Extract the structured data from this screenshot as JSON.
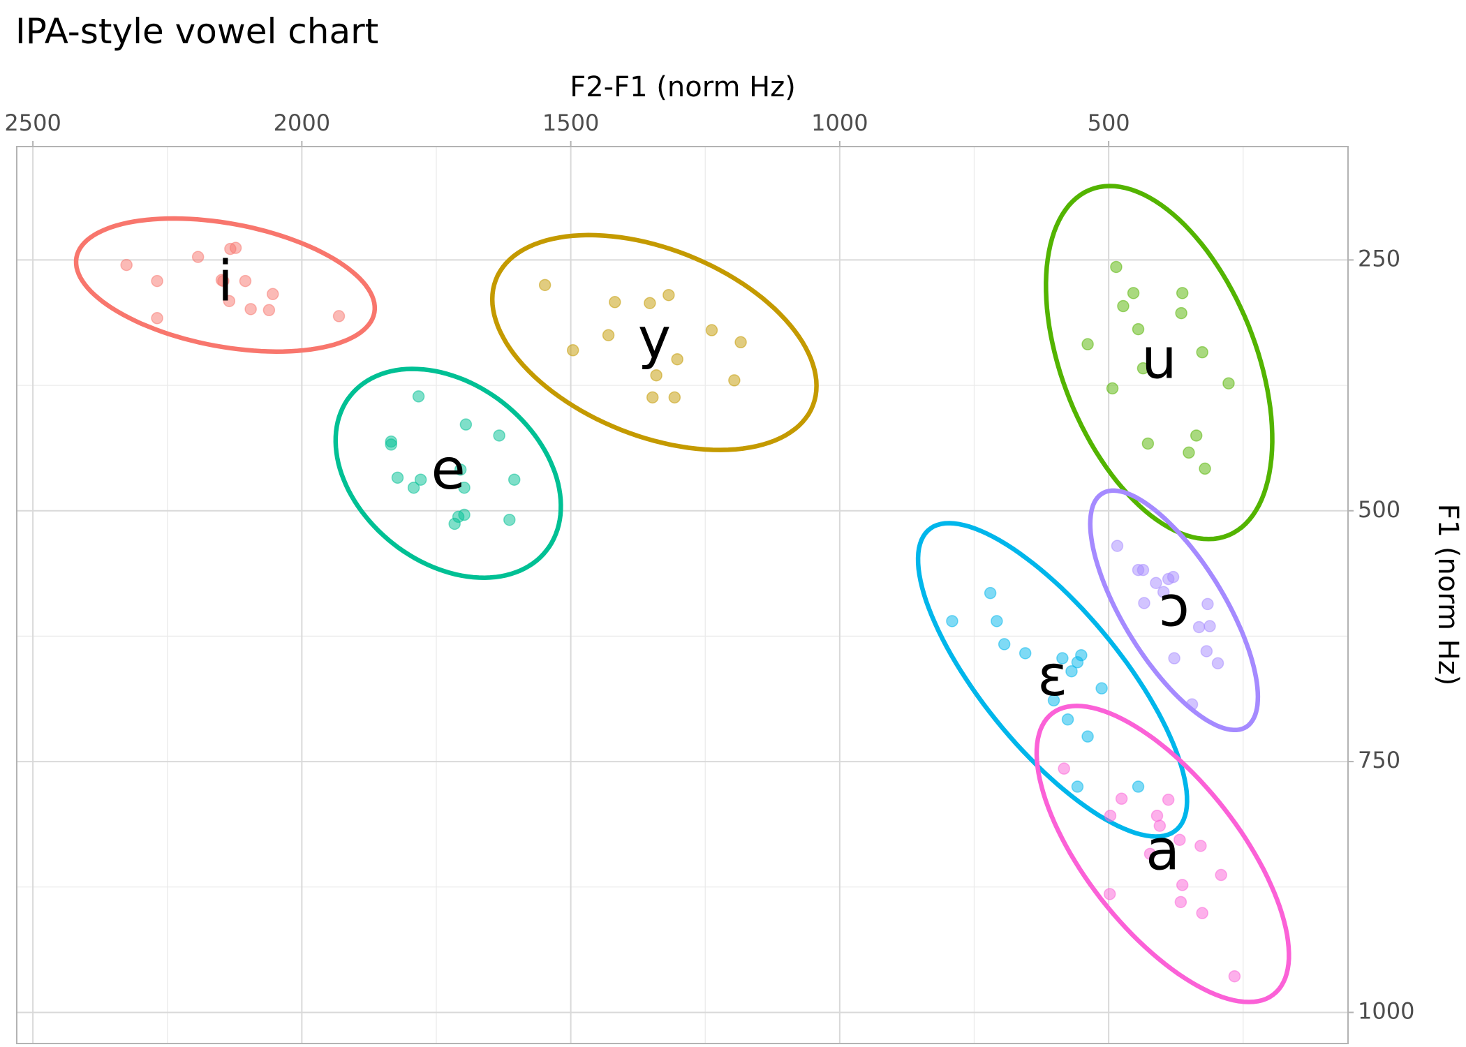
{
  "chart_data": {
    "type": "scatter",
    "title": "IPA-style vowel chart",
    "x_label": "F2-F1 (norm Hz)",
    "y_label": "F1 (norm Hz)",
    "xlim": [
      2530,
      55
    ],
    "ylim": [
      1031,
      137
    ],
    "xticks": [
      2500,
      2000,
      1500,
      1000,
      500
    ],
    "x_minor_ticks": [
      2250,
      1750,
      1250,
      750,
      250
    ],
    "yticks": [
      250,
      500,
      750,
      1000
    ],
    "y_minor_ticks": [
      375,
      625,
      875
    ],
    "grid": true,
    "ellipse_level": 0.95,
    "series": [
      {
        "name": "i",
        "color": "#F8766D",
        "x": [
          2326,
          2269,
          2269,
          2193,
          2133,
          2123,
          2149,
          2146,
          2135,
          2105,
          2095,
          2061,
          2054,
          1931
        ],
        "y": [
          255,
          271,
          308,
          247,
          239,
          238,
          270,
          271,
          291,
          271,
          299,
          300,
          284,
          306
        ]
      },
      {
        "name": "y",
        "color": "#C49A00",
        "x": [
          1548,
          1418,
          1353,
          1318,
          1430,
          1496,
          1238,
          1184,
          1302,
          1341,
          1196,
          1348,
          1307
        ],
        "y": [
          275,
          292,
          293,
          285,
          325,
          340,
          320,
          332,
          349,
          365,
          370,
          387,
          387
        ]
      },
      {
        "name": "u",
        "color": "#53B400",
        "x": [
          486,
          454,
          473,
          363,
          365,
          445,
          539,
          436,
          493,
          326,
          277,
          427,
          337,
          351,
          321
        ],
        "y": [
          257,
          283,
          296,
          283,
          303,
          319,
          334,
          358,
          378,
          342,
          373,
          433,
          425,
          442,
          458
        ]
      },
      {
        "name": "e",
        "color": "#00C094",
        "x": [
          1783,
          1834,
          1834,
          1695,
          1633,
          1822,
          1792,
          1779,
          1705,
          1698,
          1605,
          1698,
          1709,
          1716,
          1614
        ],
        "y": [
          386,
          431,
          434,
          414,
          425,
          467,
          477,
          469,
          459,
          477,
          469,
          504,
          506,
          513,
          509
        ]
      },
      {
        "name": "ɛ",
        "color": "#00B6EB",
        "x": [
          791,
          720,
          708,
          694,
          655,
          586,
          551,
          558,
          569,
          513,
          602,
          576,
          539,
          558,
          445
        ],
        "y": [
          610,
          582,
          610,
          633,
          642,
          647,
          644,
          651,
          660,
          677,
          689,
          708,
          725,
          775,
          775
        ]
      },
      {
        "name": "ɔ",
        "color": "#A58AFF",
        "x": [
          484,
          445,
          436,
          412,
          389,
          380,
          398,
          434,
          316,
          332,
          312,
          378,
          318,
          297,
          345
        ],
        "y": [
          535,
          559,
          559,
          572,
          568,
          566,
          581,
          592,
          593,
          616,
          615,
          647,
          640,
          652,
          693
        ]
      },
      {
        "name": "a",
        "color": "#FB61D7",
        "x": [
          583,
          476,
          497,
          389,
          410,
          405,
          423,
          368,
          329,
          291,
          498,
          363,
          366,
          326,
          266
        ],
        "y": [
          757,
          787,
          804,
          788,
          804,
          814,
          842,
          828,
          834,
          863,
          882,
          873,
          890,
          901,
          964
        ]
      }
    ]
  }
}
